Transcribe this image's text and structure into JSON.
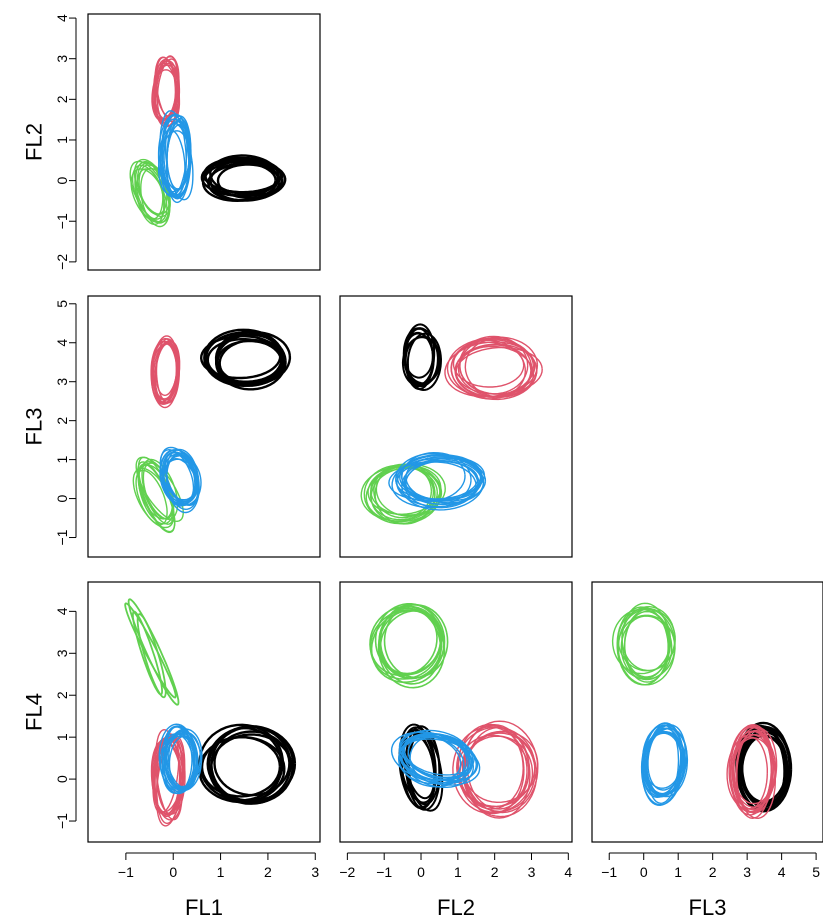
{
  "chart_data": {
    "type": "scatter",
    "variables": [
      "FL1",
      "FL2",
      "FL3",
      "FL4"
    ],
    "colors": {
      "black": "#000000",
      "red": "#DF536B",
      "green": "#61D04F",
      "blue": "#2297E6"
    },
    "axes": {
      "FL1": {
        "label": "FL1",
        "range": [
          -1.8,
          3.1
        ],
        "ticks": [
          -1,
          0,
          1,
          2,
          3
        ]
      },
      "FL2": {
        "label": "FL2",
        "range": [
          -2.2,
          4.1
        ],
        "ticks": [
          -2,
          -1,
          0,
          1,
          2,
          3,
          4
        ]
      },
      "FL3": {
        "label": "FL3",
        "range": [
          -1.5,
          5.2
        ],
        "ticks": [
          -1,
          0,
          1,
          2,
          3,
          4,
          5
        ]
      },
      "FL4": {
        "label": "FL4",
        "range": [
          -1.5,
          4.7
        ],
        "ticks": [
          -1,
          0,
          1,
          2,
          3,
          4
        ]
      }
    },
    "panels": [
      {
        "x": "FL1",
        "y": "FL2",
        "clusters": [
          {
            "color": "black",
            "cx": 1.5,
            "cy": 0.05,
            "rx": 0.75,
            "ry": 0.45,
            "n": 9,
            "spread": [
              0.15,
              0.1
            ],
            "lw": 2.4
          },
          {
            "color": "red",
            "cx": -0.15,
            "cy": 2.2,
            "rx": 0.25,
            "ry": 0.75,
            "n": 12,
            "spread": [
              0.06,
              0.12
            ],
            "lw": 1.4
          },
          {
            "color": "green",
            "cx": -0.45,
            "cy": -0.35,
            "rx": 0.3,
            "ry": 0.75,
            "n": 10,
            "spread": [
              0.12,
              0.18
            ],
            "lw": 1.4,
            "rot": 0.25
          },
          {
            "color": "blue",
            "cx": 0.05,
            "cy": 0.55,
            "rx": 0.3,
            "ry": 0.95,
            "n": 14,
            "spread": [
              0.08,
              0.15
            ],
            "lw": 1.4
          }
        ]
      },
      {
        "x": "FL1",
        "y": "FL3",
        "clusters": [
          {
            "color": "black",
            "cx": 1.55,
            "cy": 3.55,
            "rx": 0.8,
            "ry": 0.65,
            "n": 9,
            "spread": [
              0.15,
              0.1
            ],
            "lw": 2.4
          },
          {
            "color": "red",
            "cx": -0.15,
            "cy": 3.25,
            "rx": 0.25,
            "ry": 0.8,
            "n": 10,
            "spread": [
              0.04,
              0.08
            ],
            "lw": 1.4
          },
          {
            "color": "green",
            "cx": -0.4,
            "cy": 0.15,
            "rx": 0.3,
            "ry": 0.85,
            "n": 10,
            "spread": [
              0.12,
              0.15
            ],
            "lw": 1.4,
            "rot": 0.35
          },
          {
            "color": "blue",
            "cx": 0.15,
            "cy": 0.5,
            "rx": 0.35,
            "ry": 0.7,
            "n": 14,
            "spread": [
              0.08,
              0.12
            ],
            "lw": 1.4,
            "rot": 0.2
          }
        ]
      },
      {
        "x": "FL2",
        "y": "FL3",
        "clusters": [
          {
            "color": "black",
            "cx": 0.0,
            "cy": 3.6,
            "rx": 0.45,
            "ry": 0.7,
            "n": 8,
            "spread": [
              0.1,
              0.12
            ],
            "lw": 2.0
          },
          {
            "color": "red",
            "cx": 2.0,
            "cy": 3.35,
            "rx": 1.1,
            "ry": 0.7,
            "n": 12,
            "spread": [
              0.18,
              0.1
            ],
            "lw": 1.4
          },
          {
            "color": "green",
            "cx": -0.5,
            "cy": 0.15,
            "rx": 0.95,
            "ry": 0.75,
            "n": 10,
            "spread": [
              0.15,
              0.1
            ],
            "lw": 1.4
          },
          {
            "color": "blue",
            "cx": 0.45,
            "cy": 0.45,
            "rx": 1.1,
            "ry": 0.6,
            "n": 14,
            "spread": [
              0.2,
              0.1
            ],
            "lw": 1.4
          }
        ]
      },
      {
        "x": "FL1",
        "y": "FL4",
        "clusters": [
          {
            "color": "black",
            "cx": 1.55,
            "cy": 0.3,
            "rx": 0.85,
            "ry": 0.85,
            "n": 9,
            "spread": [
              0.12,
              0.1
            ],
            "lw": 2.4
          },
          {
            "color": "red",
            "cx": -0.1,
            "cy": 0.05,
            "rx": 0.3,
            "ry": 1.05,
            "n": 12,
            "spread": [
              0.06,
              0.1
            ],
            "lw": 1.4
          },
          {
            "color": "green",
            "cx": -0.45,
            "cy": 3.0,
            "rx": 0.14,
            "ry": 1.25,
            "n": 4,
            "spread": [
              0.1,
              0.1
            ],
            "lw": 1.8,
            "rot": 0.38
          },
          {
            "color": "blue",
            "cx": 0.15,
            "cy": 0.45,
            "rx": 0.35,
            "ry": 0.75,
            "n": 14,
            "spread": [
              0.08,
              0.1
            ],
            "lw": 1.4
          }
        ]
      },
      {
        "x": "FL2",
        "y": "FL4",
        "clusters": [
          {
            "color": "black",
            "cx": 0.0,
            "cy": 0.3,
            "rx": 0.45,
            "ry": 1.0,
            "n": 8,
            "spread": [
              0.1,
              0.08
            ],
            "lw": 2.0,
            "rot": 0.15
          },
          {
            "color": "red",
            "cx": 2.0,
            "cy": 0.2,
            "rx": 1.0,
            "ry": 1.0,
            "n": 12,
            "spread": [
              0.18,
              0.1
            ],
            "lw": 1.4,
            "rot": 0.1
          },
          {
            "color": "green",
            "cx": -0.3,
            "cy": 3.25,
            "rx": 0.9,
            "ry": 0.85,
            "n": 10,
            "spread": [
              0.2,
              0.15
            ],
            "lw": 1.6,
            "rot": 0.35
          },
          {
            "color": "blue",
            "cx": 0.4,
            "cy": 0.5,
            "rx": 1.0,
            "ry": 0.55,
            "n": 14,
            "spread": [
              0.15,
              0.1
            ],
            "lw": 1.4,
            "rot": -0.15
          }
        ]
      },
      {
        "x": "FL3",
        "y": "FL4",
        "clusters": [
          {
            "color": "black",
            "cx": 3.5,
            "cy": 0.25,
            "rx": 0.7,
            "ry": 0.95,
            "n": 9,
            "spread": [
              0.1,
              0.06
            ],
            "lw": 2.4
          },
          {
            "color": "red",
            "cx": 3.15,
            "cy": 0.2,
            "rx": 0.6,
            "ry": 1.0,
            "n": 12,
            "spread": [
              0.08,
              0.06
            ],
            "lw": 1.4
          },
          {
            "color": "green",
            "cx": 0.05,
            "cy": 3.25,
            "rx": 0.75,
            "ry": 0.85,
            "n": 10,
            "spread": [
              0.12,
              0.12
            ],
            "lw": 1.4
          },
          {
            "color": "blue",
            "cx": 0.6,
            "cy": 0.45,
            "rx": 0.55,
            "ry": 0.9,
            "n": 14,
            "spread": [
              0.08,
              0.1
            ],
            "lw": 1.4,
            "rot": -0.15
          }
        ]
      }
    ]
  }
}
